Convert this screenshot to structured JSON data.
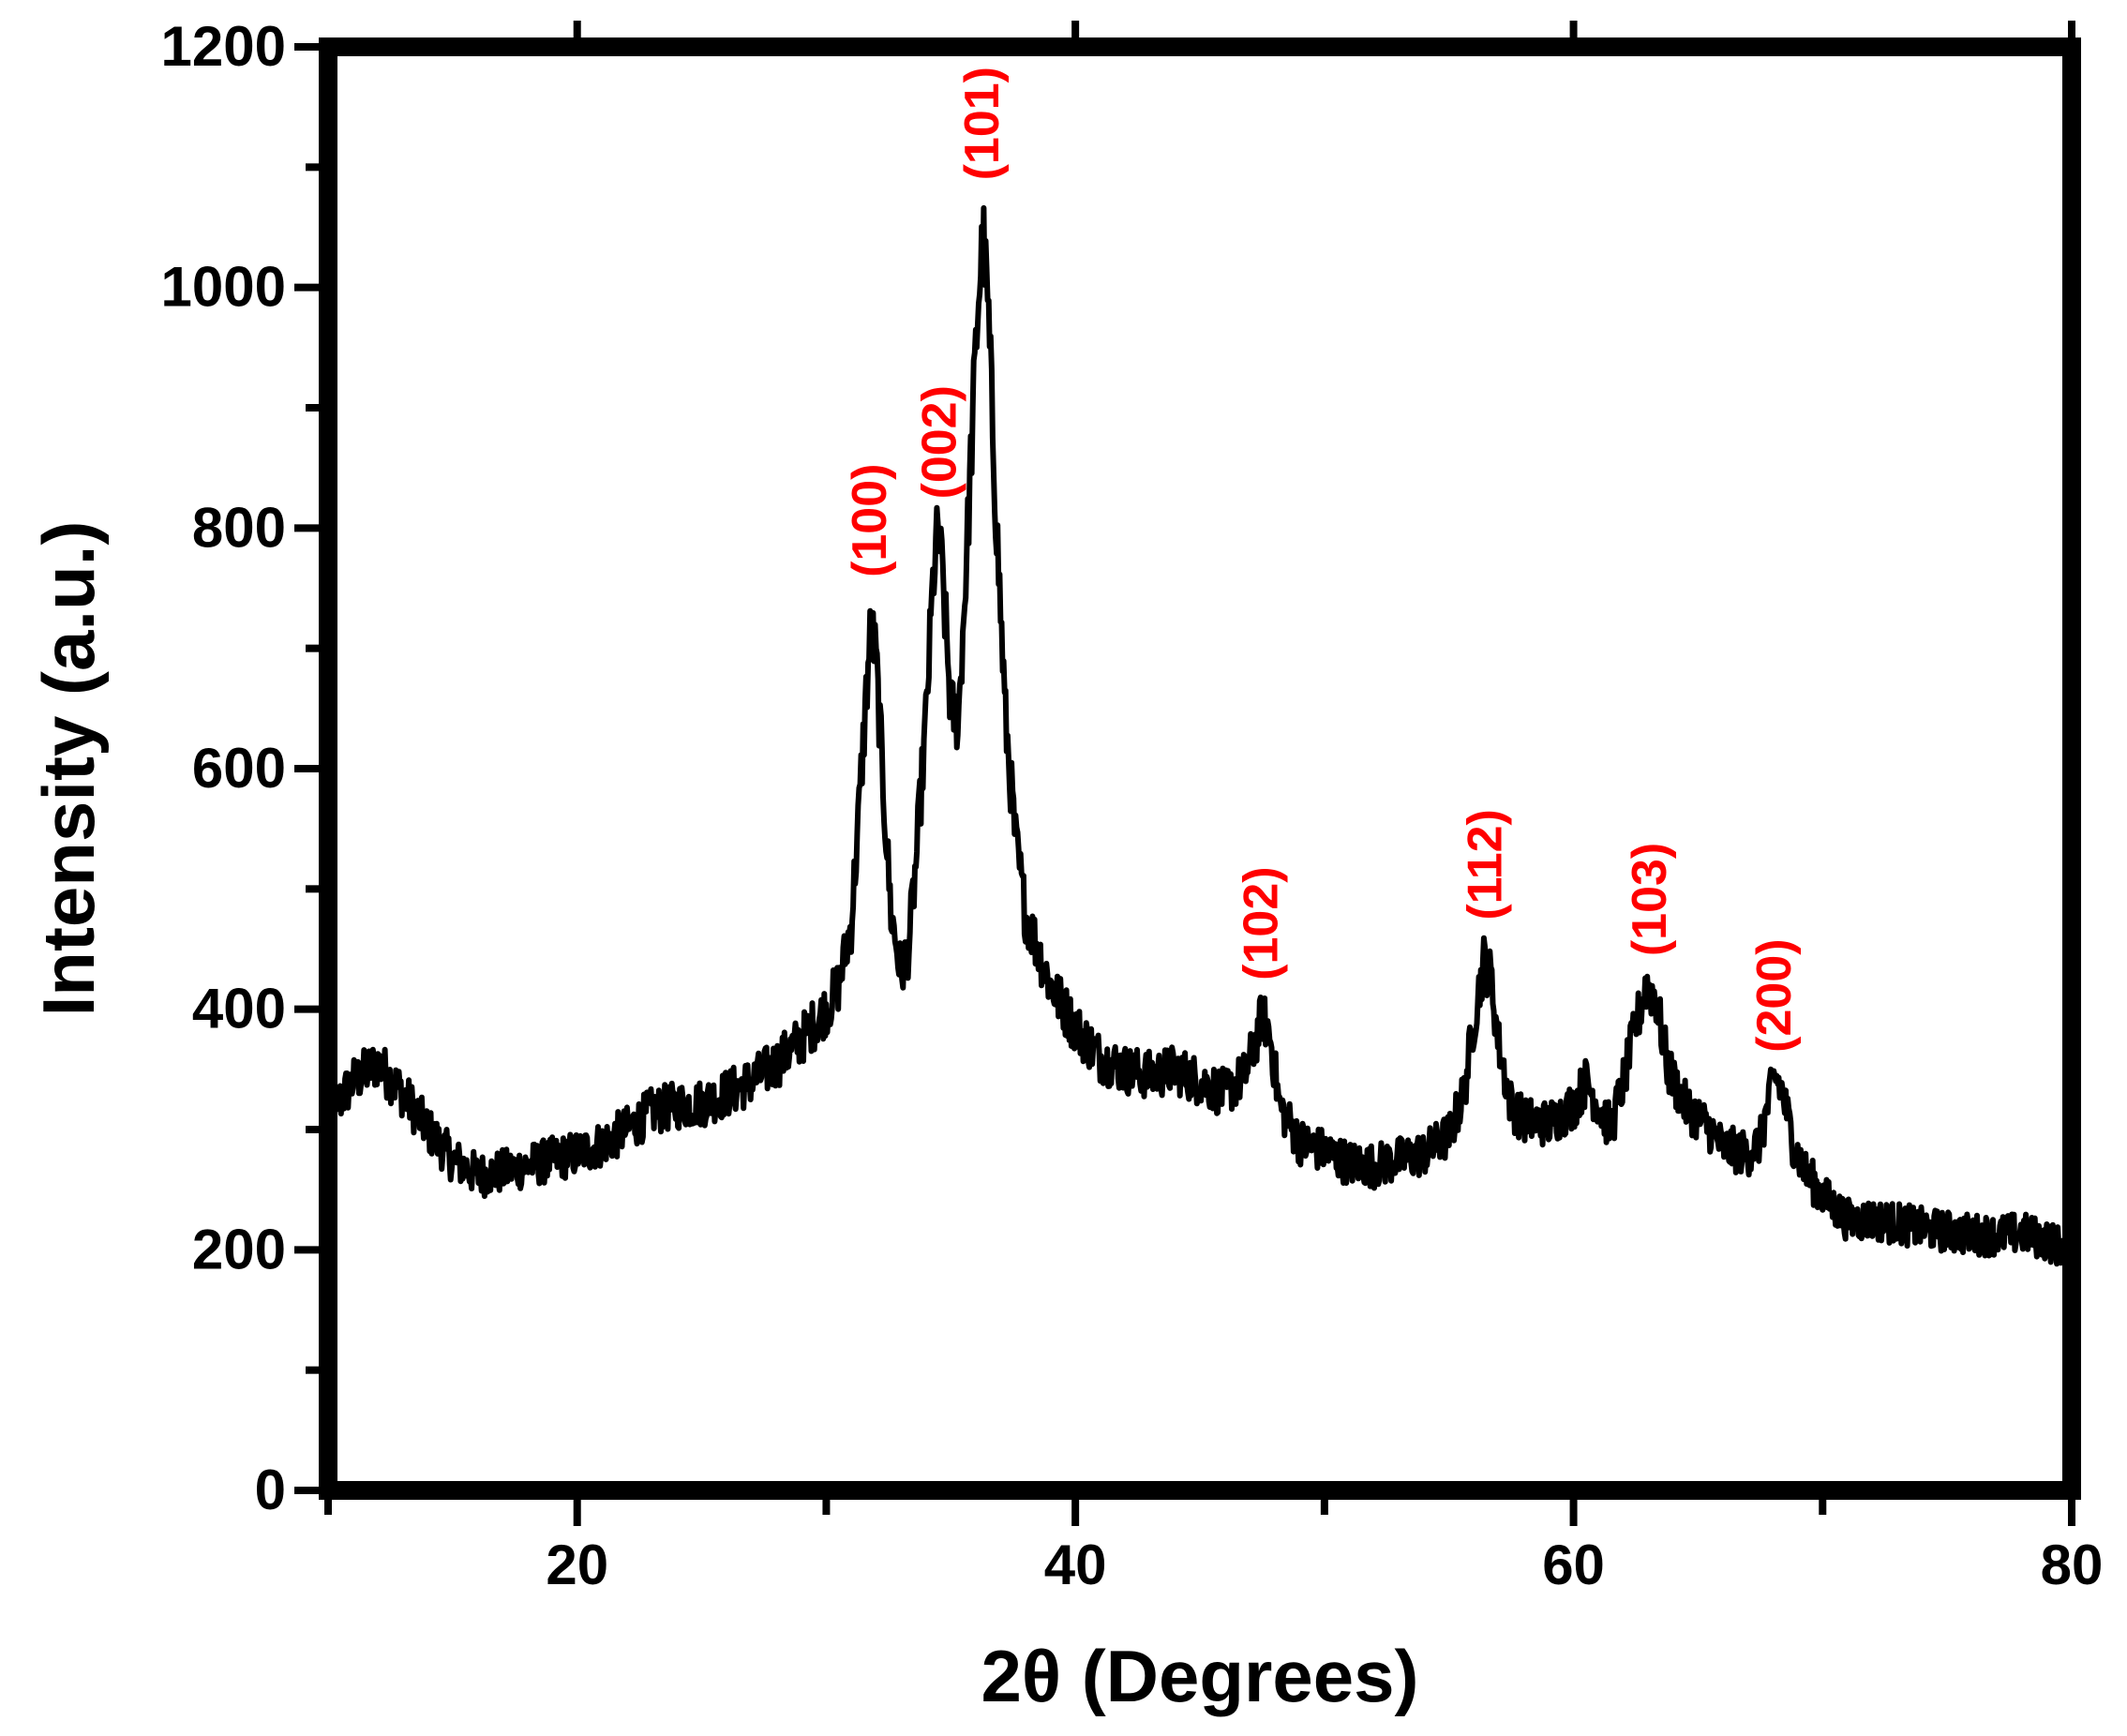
{
  "chart_data": {
    "type": "line",
    "title": "",
    "xlabel": "2θ (Degrees)",
    "ylabel": "Intensity (a.u.)",
    "xlim": [
      10,
      80
    ],
    "ylim": [
      0,
      1200
    ],
    "xticks": [
      20,
      40,
      60,
      80
    ],
    "yticks": [
      0,
      200,
      400,
      600,
      800,
      1000,
      1200
    ],
    "grid": false,
    "legend": "none",
    "colors": {
      "line": "#000000",
      "annotation": "#ff0000",
      "axis": "#000000"
    },
    "series": [
      {
        "x": [
          10,
          11,
          12,
          13,
          14,
          15,
          16,
          17,
          18,
          19,
          20,
          21,
          22,
          23,
          24,
          25,
          26,
          27,
          28,
          29,
          30,
          30.5,
          31,
          31.3,
          31.6,
          31.8,
          32.0,
          32.3,
          32.6,
          33.0,
          33.3,
          33.6,
          34.0,
          34.3,
          34.5,
          34.7,
          35.0,
          35.3,
          35.6,
          35.9,
          36.1,
          36.3,
          36.5,
          36.8,
          37.2,
          37.6,
          38.0,
          39.0,
          40.0,
          41,
          42,
          43,
          44,
          45,
          46,
          46.8,
          47.2,
          47.5,
          47.8,
          48.2,
          49,
          50,
          51,
          52,
          53,
          54,
          55,
          55.6,
          56.0,
          56.4,
          56.7,
          57.0,
          57.5,
          58.0,
          59,
          60,
          60.5,
          61,
          61.5,
          62.0,
          62.5,
          62.9,
          63.3,
          63.8,
          64.5,
          65,
          65.5,
          66,
          67,
          67.5,
          67.8,
          68.1,
          68.4,
          68.8,
          69.3,
          70,
          71,
          72,
          73,
          74,
          75,
          76,
          77,
          78,
          79,
          80
        ],
        "y": [
          310,
          340,
          355,
          330,
          300,
          275,
          262,
          265,
          270,
          275,
          280,
          288,
          300,
          315,
          320,
          322,
          330,
          340,
          355,
          375,
          400,
          420,
          470,
          560,
          660,
          720,
          690,
          580,
          480,
          430,
          450,
          520,
          640,
          760,
          800,
          750,
          650,
          640,
          760,
          900,
          990,
          1040,
          980,
          820,
          640,
          540,
          480,
          420,
          385,
          360,
          350,
          345,
          350,
          340,
          330,
          345,
          370,
          395,
          380,
          320,
          290,
          282,
          272,
          270,
          275,
          280,
          295,
          330,
          390,
          440,
          425,
          370,
          320,
          308,
          305,
          320,
          340,
          320,
          300,
          340,
          385,
          420,
          410,
          350,
          320,
          310,
          300,
          285,
          280,
          290,
          320,
          345,
          330,
          290,
          265,
          245,
          225,
          225,
          222,
          218,
          215,
          213,
          212,
          214,
          208,
          198
        ]
      }
    ],
    "annotations": [
      {
        "text": "(100)",
        "x": 31.8,
        "y": 745
      },
      {
        "text": "(002)",
        "x": 34.6,
        "y": 810
      },
      {
        "text": "(101)",
        "x": 36.3,
        "y": 1075
      },
      {
        "text": "(102)",
        "x": 47.5,
        "y": 410
      },
      {
        "text": "(112)",
        "x": 56.5,
        "y": 460
      },
      {
        "text": "(103)",
        "x": 63.1,
        "y": 430
      },
      {
        "text": "(200)",
        "x": 68.1,
        "y": 350
      }
    ]
  }
}
